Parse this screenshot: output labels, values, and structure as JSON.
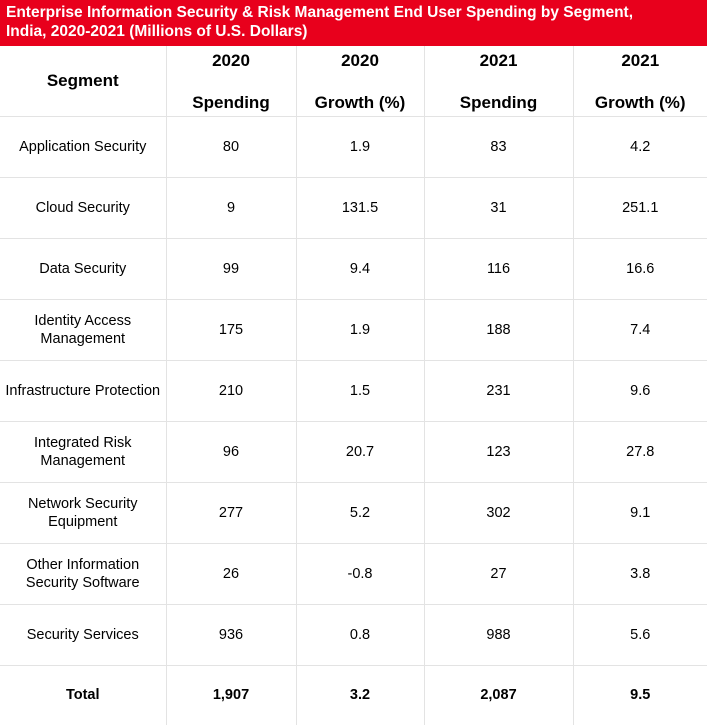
{
  "title": {
    "line1": "Enterprise Information Security & Risk Management End User Spending by Segment,",
    "line2": "India, 2020-2021 (Millions of U.S. Dollars)"
  },
  "colors": {
    "title_background": "#e8001c",
    "title_text": "#ffffff",
    "grid_lines": "#e3e3e3"
  },
  "columns": [
    {
      "top": "",
      "bottom": "Segment"
    },
    {
      "top": "2020",
      "bottom": "Spending"
    },
    {
      "top": "2020",
      "bottom": "Growth (%)"
    },
    {
      "top": "2021",
      "bottom": "Spending"
    },
    {
      "top": "2021",
      "bottom": "Growth (%)"
    }
  ],
  "rows": [
    {
      "segment": "Application Security",
      "spending_2020": "80",
      "growth_2020": "1.9",
      "spending_2021": "83",
      "growth_2021": "4.2"
    },
    {
      "segment": "Cloud Security",
      "spending_2020": "9",
      "growth_2020": "131.5",
      "spending_2021": "31",
      "growth_2021": "251.1"
    },
    {
      "segment": "Data Security",
      "spending_2020": "99",
      "growth_2020": "9.4",
      "spending_2021": "116",
      "growth_2021": "16.6"
    },
    {
      "segment": "Identity Access Management",
      "spending_2020": "175",
      "growth_2020": "1.9",
      "spending_2021": "188",
      "growth_2021": "7.4"
    },
    {
      "segment": "Infrastructure Protection",
      "spending_2020": "210",
      "growth_2020": "1.5",
      "spending_2021": "231",
      "growth_2021": "9.6"
    },
    {
      "segment": "Integrated Risk Management",
      "spending_2020": "96",
      "growth_2020": "20.7",
      "spending_2021": "123",
      "growth_2021": "27.8"
    },
    {
      "segment": "Network Security Equipment",
      "spending_2020": "277",
      "growth_2020": "5.2",
      "spending_2021": "302",
      "growth_2021": "9.1"
    },
    {
      "segment": "Other Information Security Software",
      "spending_2020": "26",
      "growth_2020": "-0.8",
      "spending_2021": "27",
      "growth_2021": "3.8"
    },
    {
      "segment": "Security Services",
      "spending_2020": "936",
      "growth_2020": "0.8",
      "spending_2021": "988",
      "growth_2021": "5.6"
    }
  ],
  "total": {
    "segment": "Total",
    "spending_2020": "1,907",
    "growth_2020": "3.2",
    "spending_2021": "2,087",
    "growth_2021": "9.5"
  }
}
